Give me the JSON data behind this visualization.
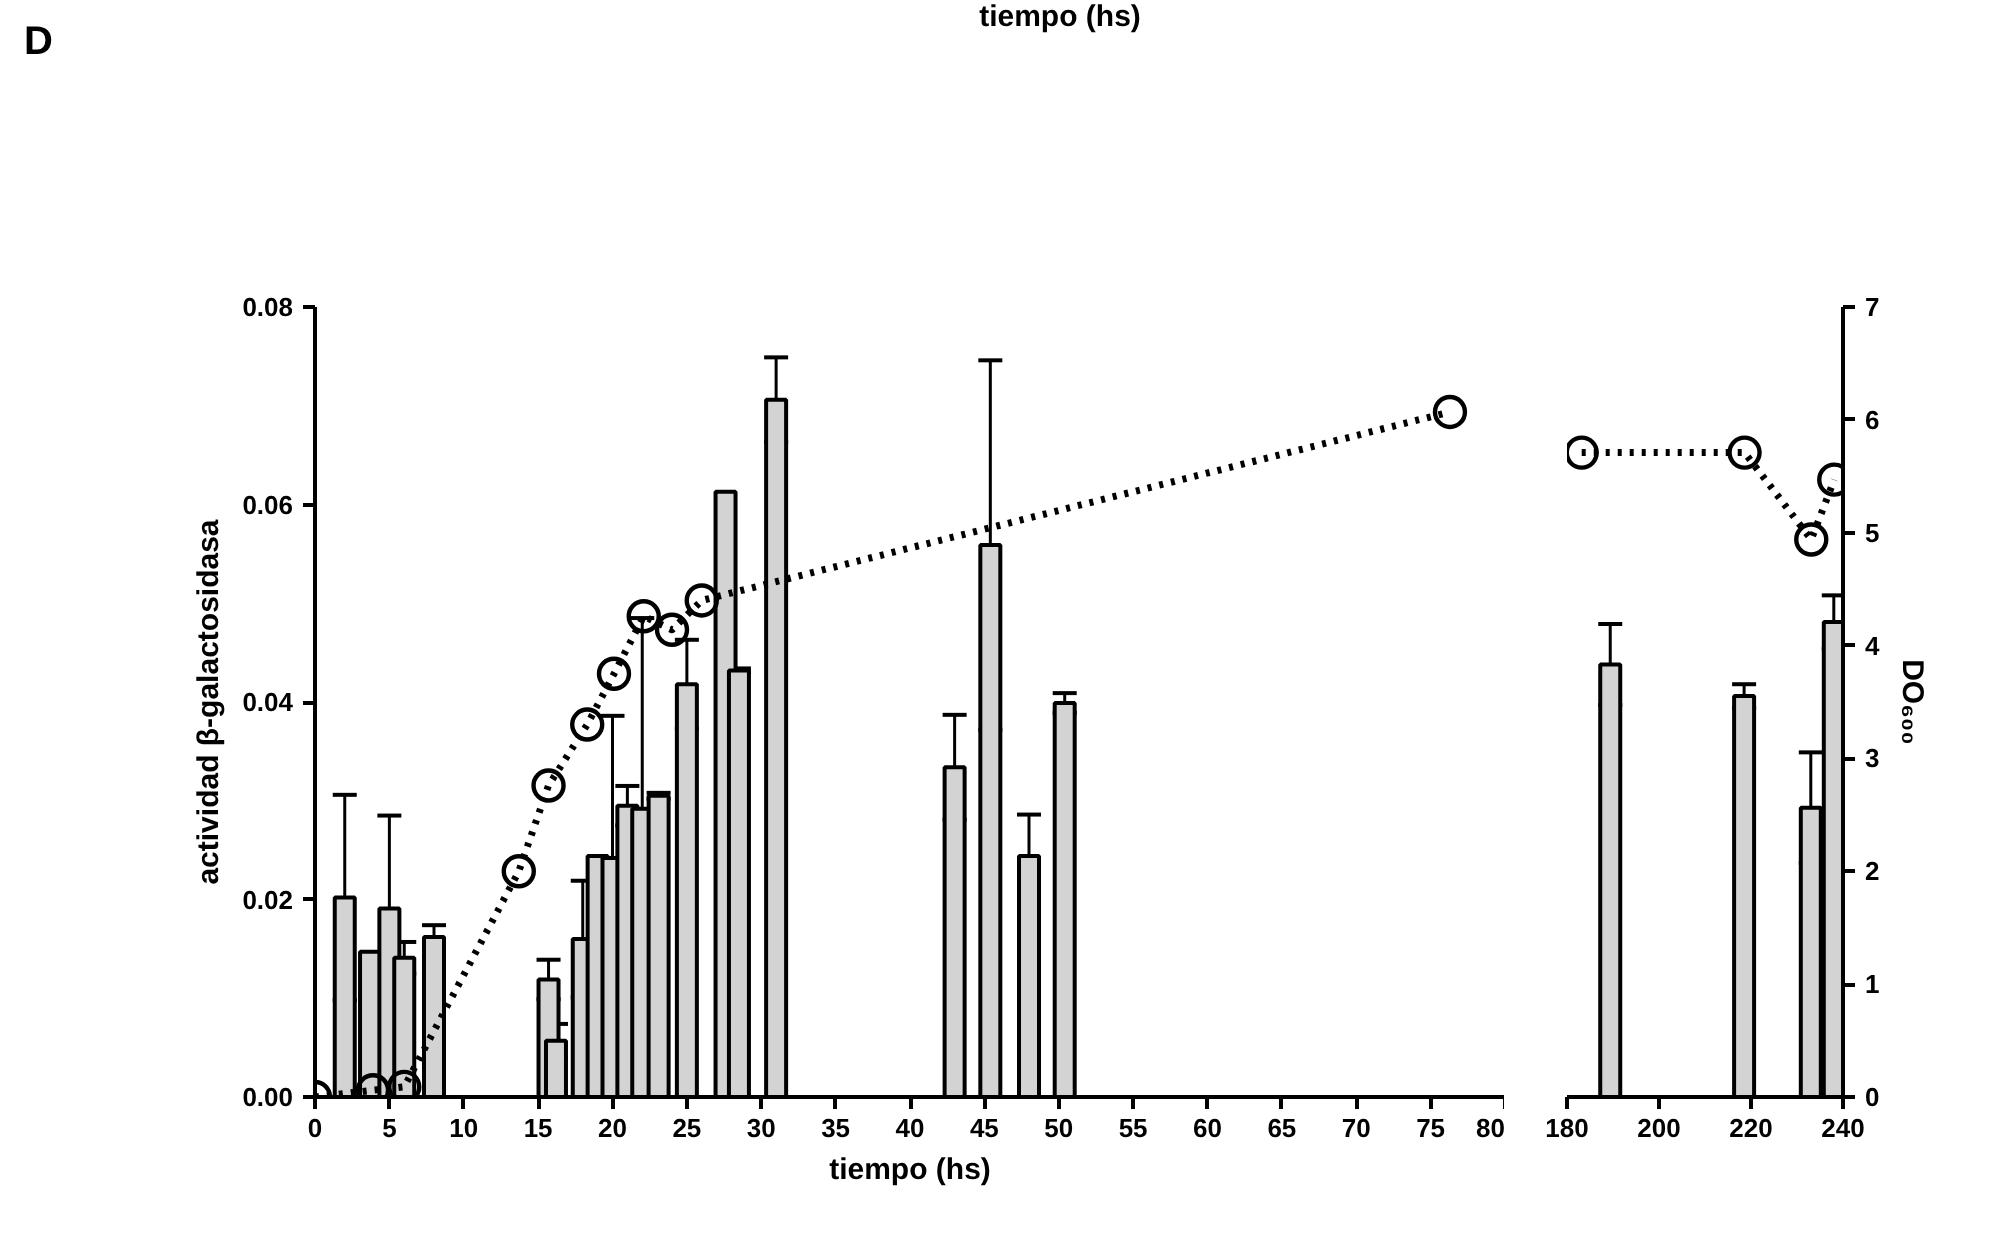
{
  "chart_data": [
    {
      "type": "bar",
      "title": "D",
      "annotations": [
        "tiempo (hs)"
      ],
      "xlabel": "tiempo (hs)",
      "ylabel": "actividad β-galactosidasa",
      "xlim": [
        0,
        80
      ],
      "xticks": [
        0,
        5,
        10,
        15,
        20,
        25,
        30,
        35,
        40,
        45,
        50,
        55,
        60,
        65,
        70,
        75,
        80
      ],
      "ylim": [
        0,
        0.08
      ],
      "yticks": [
        {
          "value": 0,
          "label": "0.00"
        },
        {
          "value": 0.02,
          "label": "0.02"
        },
        {
          "value": 0.04,
          "label": "0.04"
        },
        {
          "value": 0.06,
          "label": "0.06"
        },
        {
          "value": 0.08,
          "label": "0.08"
        }
      ],
      "y2lim": [
        0,
        7
      ],
      "series": [
        {
          "color": "#d3d3d3",
          "x": [
            2,
            3.7,
            5,
            6,
            8,
            15.7,
            16.2,
            18,
            19,
            20,
            21,
            22,
            23.1,
            25,
            27.6,
            28.5,
            31,
            43,
            45.4,
            48,
            50.4
          ],
          "values": [
            0.0202,
            0.0147,
            0.0191,
            0.0141,
            0.0162,
            0.0119,
            0.0057,
            0.016,
            0.0244,
            0.0242,
            0.0295,
            0.0292,
            0.0305,
            0.0418,
            0.0613,
            0.0432,
            0.0706,
            0.0334,
            0.0559,
            0.0244,
            0.0399
          ],
          "errors": [
            0.0104,
            null,
            0.0094,
            0.0016,
            0.0012,
            0.002,
            0.0017,
            0.0059,
            null,
            0.0144,
            0.002,
            0.0193,
            0.0003,
            0.0045,
            null,
            0.0002,
            0.0043,
            0.0053,
            0.0187,
            0.0042,
            0.001
          ]
        },
        {
          "type": "line",
          "axis": "y2",
          "color": "#000000",
          "marker": "circle",
          "line_style": "dotted",
          "x": [
            0,
            3.9,
            6,
            13.7,
            15.7,
            18.3,
            20.1,
            22.1,
            24,
            26,
            76.3
          ],
          "values": [
            0,
            0.06,
            0.09,
            2.0,
            2.76,
            3.3,
            3.75,
            4.26,
            4.14,
            4.4,
            6.07
          ]
        }
      ]
    },
    {
      "type": "bar",
      "y2label": "DO₆₀₀",
      "xlim": [
        180,
        240
      ],
      "xticks": [
        180,
        200,
        220,
        240
      ],
      "ylim": [
        0,
        0.08
      ],
      "y2lim": [
        0,
        7
      ],
      "y2ticks": [
        0,
        1,
        2,
        3,
        4,
        5,
        6,
        7
      ],
      "series": [
        {
          "color": "#d3d3d3",
          "x": [
            189.4,
            218.5,
            233,
            238
          ],
          "values": [
            0.0438,
            0.0406,
            0.0293,
            0.0481
          ],
          "errors": [
            0.0041,
            0.0012,
            0.0056,
            0.0027
          ]
        },
        {
          "type": "line",
          "axis": "y2",
          "color": "#000000",
          "marker": "circle",
          "line_style": "dotted",
          "x": [
            183.2,
            218.6,
            233.1,
            238.1
          ],
          "values": [
            5.71,
            5.71,
            4.94,
            5.47
          ]
        }
      ]
    }
  ]
}
